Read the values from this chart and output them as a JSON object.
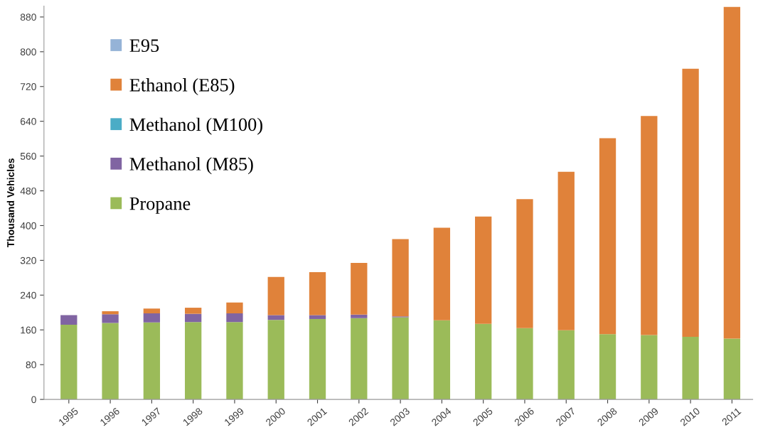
{
  "chart_data": {
    "type": "bar",
    "stacked": true,
    "ylabel": "Thousand Vehicles",
    "categories": [
      "1995",
      "1996",
      "1997",
      "1998",
      "1999",
      "2000",
      "2001",
      "2002",
      "2003",
      "2004",
      "2005",
      "2006",
      "2007",
      "2008",
      "2009",
      "2010",
      "2011"
    ],
    "series": [
      {
        "name": "Propane",
        "color": "#9bbb59",
        "values": [
          172,
          176,
          177,
          178,
          178,
          183,
          185,
          187,
          189,
          182,
          174,
          164,
          159,
          150,
          148,
          144,
          140
        ]
      },
      {
        "name": "Methanol (M85)",
        "color": "#8064a2",
        "values": [
          22,
          20,
          21,
          19,
          20,
          11,
          9,
          8,
          2,
          0,
          0,
          0,
          0,
          0,
          0,
          0,
          0
        ]
      },
      {
        "name": "Methanol (M100)",
        "color": "#4bacc6",
        "values": [
          0,
          0,
          0,
          0,
          0,
          0,
          0,
          0,
          0,
          0,
          0,
          0,
          0,
          0,
          0,
          0,
          0
        ]
      },
      {
        "name": "Ethanol (E85)",
        "color": "#e0823a",
        "values": [
          0,
          7,
          11,
          14,
          25,
          88,
          99,
          119,
          178,
          213,
          247,
          297,
          365,
          451,
          504,
          617,
          763
        ]
      },
      {
        "name": "E95",
        "color": "#95b3d7",
        "values": [
          0,
          0,
          0,
          0,
          0,
          0,
          0,
          0,
          0,
          0,
          0,
          0,
          0,
          0,
          0,
          0,
          0
        ]
      }
    ],
    "ylim": [
      0,
      905
    ],
    "yticks": [
      0,
      80,
      160,
      240,
      320,
      400,
      480,
      560,
      640,
      720,
      800,
      880
    ],
    "grid": false,
    "legend": "top left"
  }
}
